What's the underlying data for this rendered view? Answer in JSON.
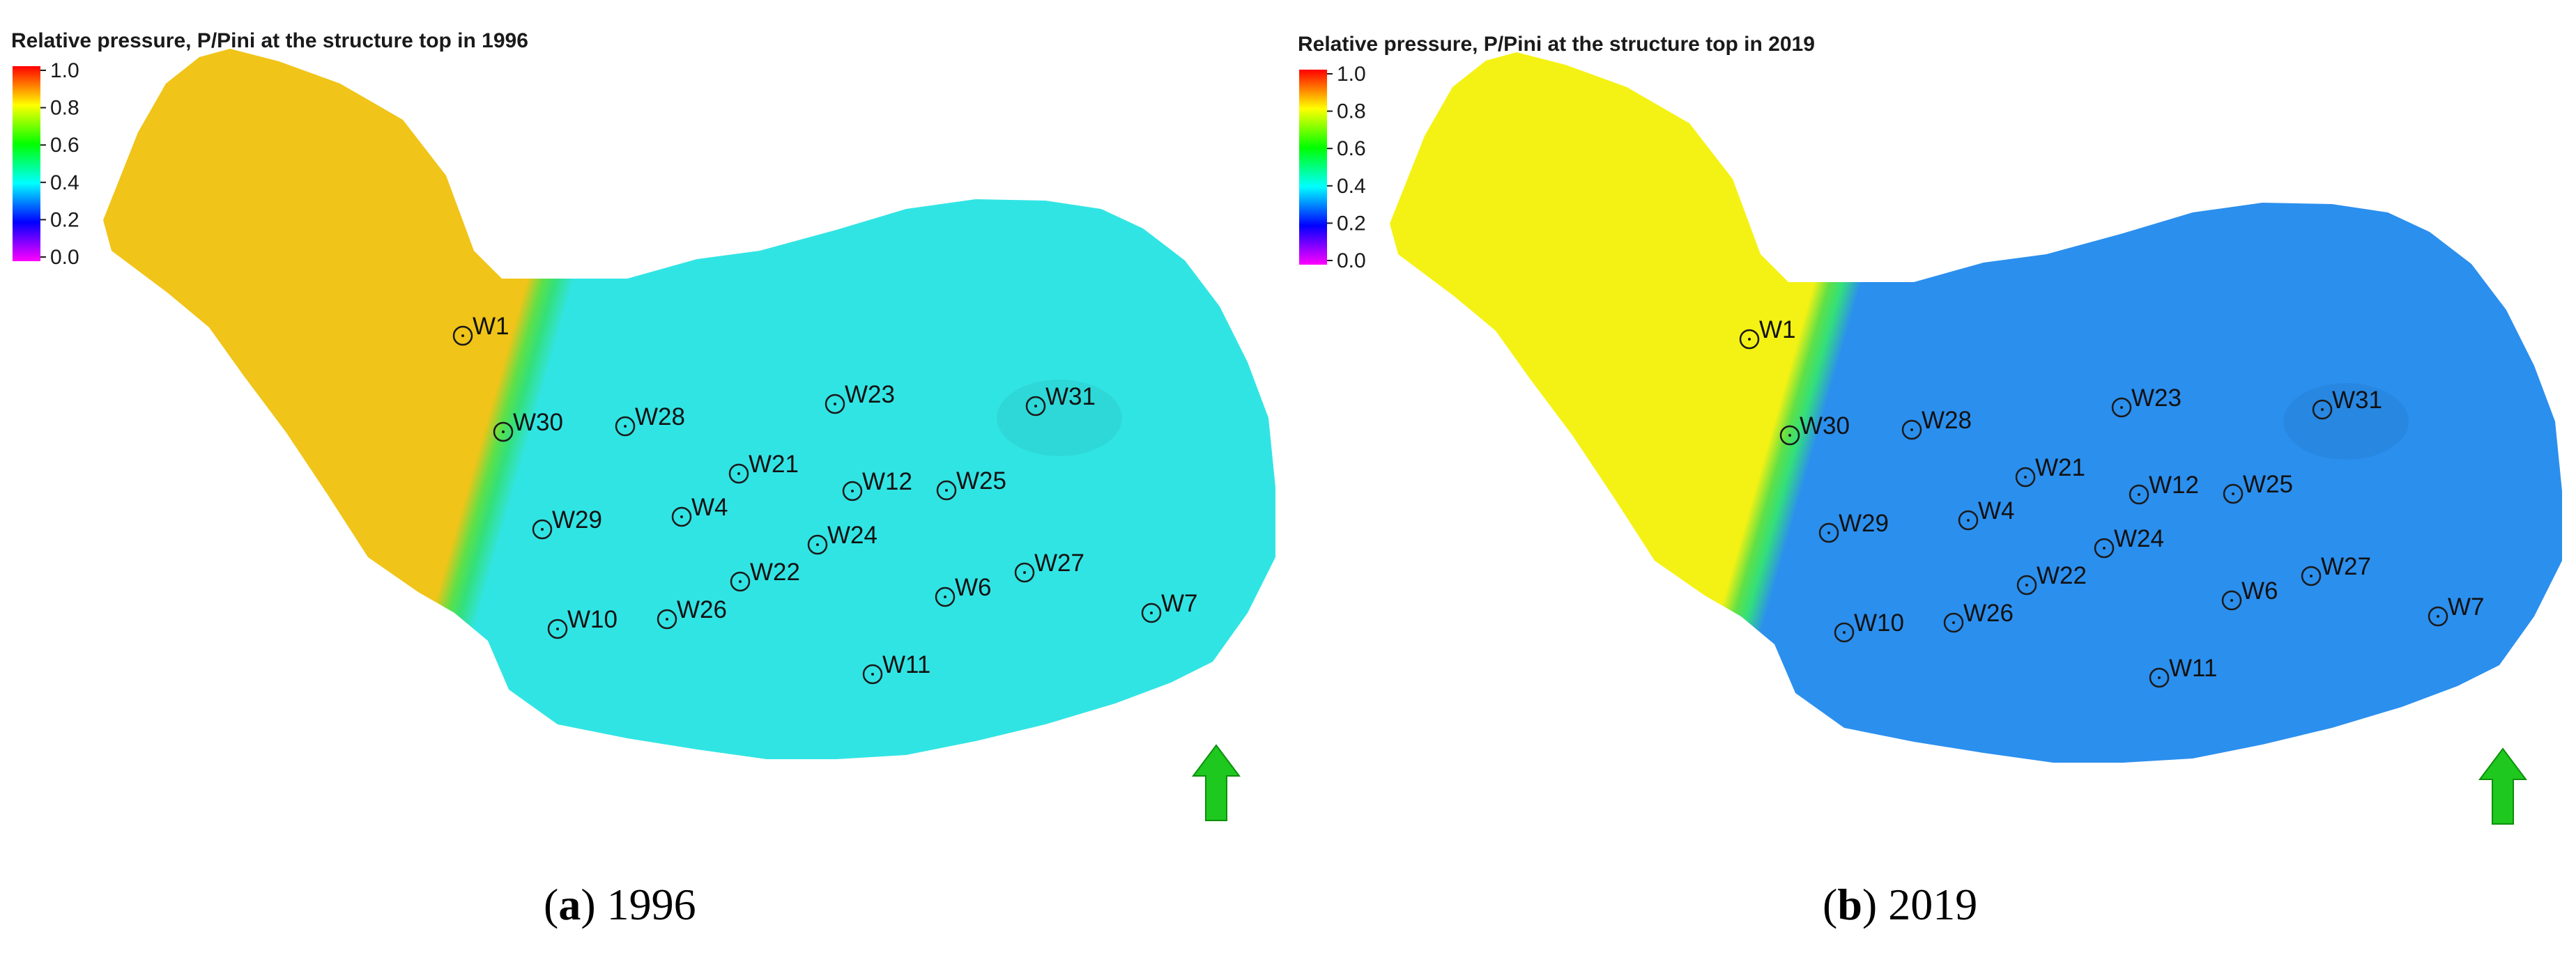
{
  "figure": {
    "colors": {
      "scale": [
        "#ff00ff",
        "#0000ff",
        "#00ffff",
        "#00ff00",
        "#ffff00",
        "#ff0000"
      ],
      "north_arrow": "#1ec81e",
      "tick_text": "#1a1a1a"
    },
    "legend": {
      "ticks": [
        "1.0",
        "0.8",
        "0.6",
        "0.4",
        "0.2",
        "0.0"
      ]
    },
    "panels": [
      {
        "title": "Relative pressure, P/Pini at the structure top in 1996",
        "caption_letter": "a",
        "caption_year": "1996",
        "west_value": 0.85,
        "east_value": 0.35,
        "west_color": "#f0c418",
        "east_color": "#31e4e4"
      },
      {
        "title": "Relative pressure, P/Pini at the structure top in 2019",
        "caption_letter": "b",
        "caption_year": "2019",
        "west_value": 0.8,
        "east_value": 0.3,
        "west_color": "#f4f214",
        "east_color": "#2b8fee"
      }
    ],
    "wells": [
      "W1",
      "W30",
      "W28",
      "W23",
      "W31",
      "W21",
      "W12",
      "W25",
      "W29",
      "W4",
      "W24",
      "W22",
      "W27",
      "W6",
      "W10",
      "W26",
      "W7",
      "W11"
    ],
    "north_arrow_icon": "north-arrow-icon"
  }
}
